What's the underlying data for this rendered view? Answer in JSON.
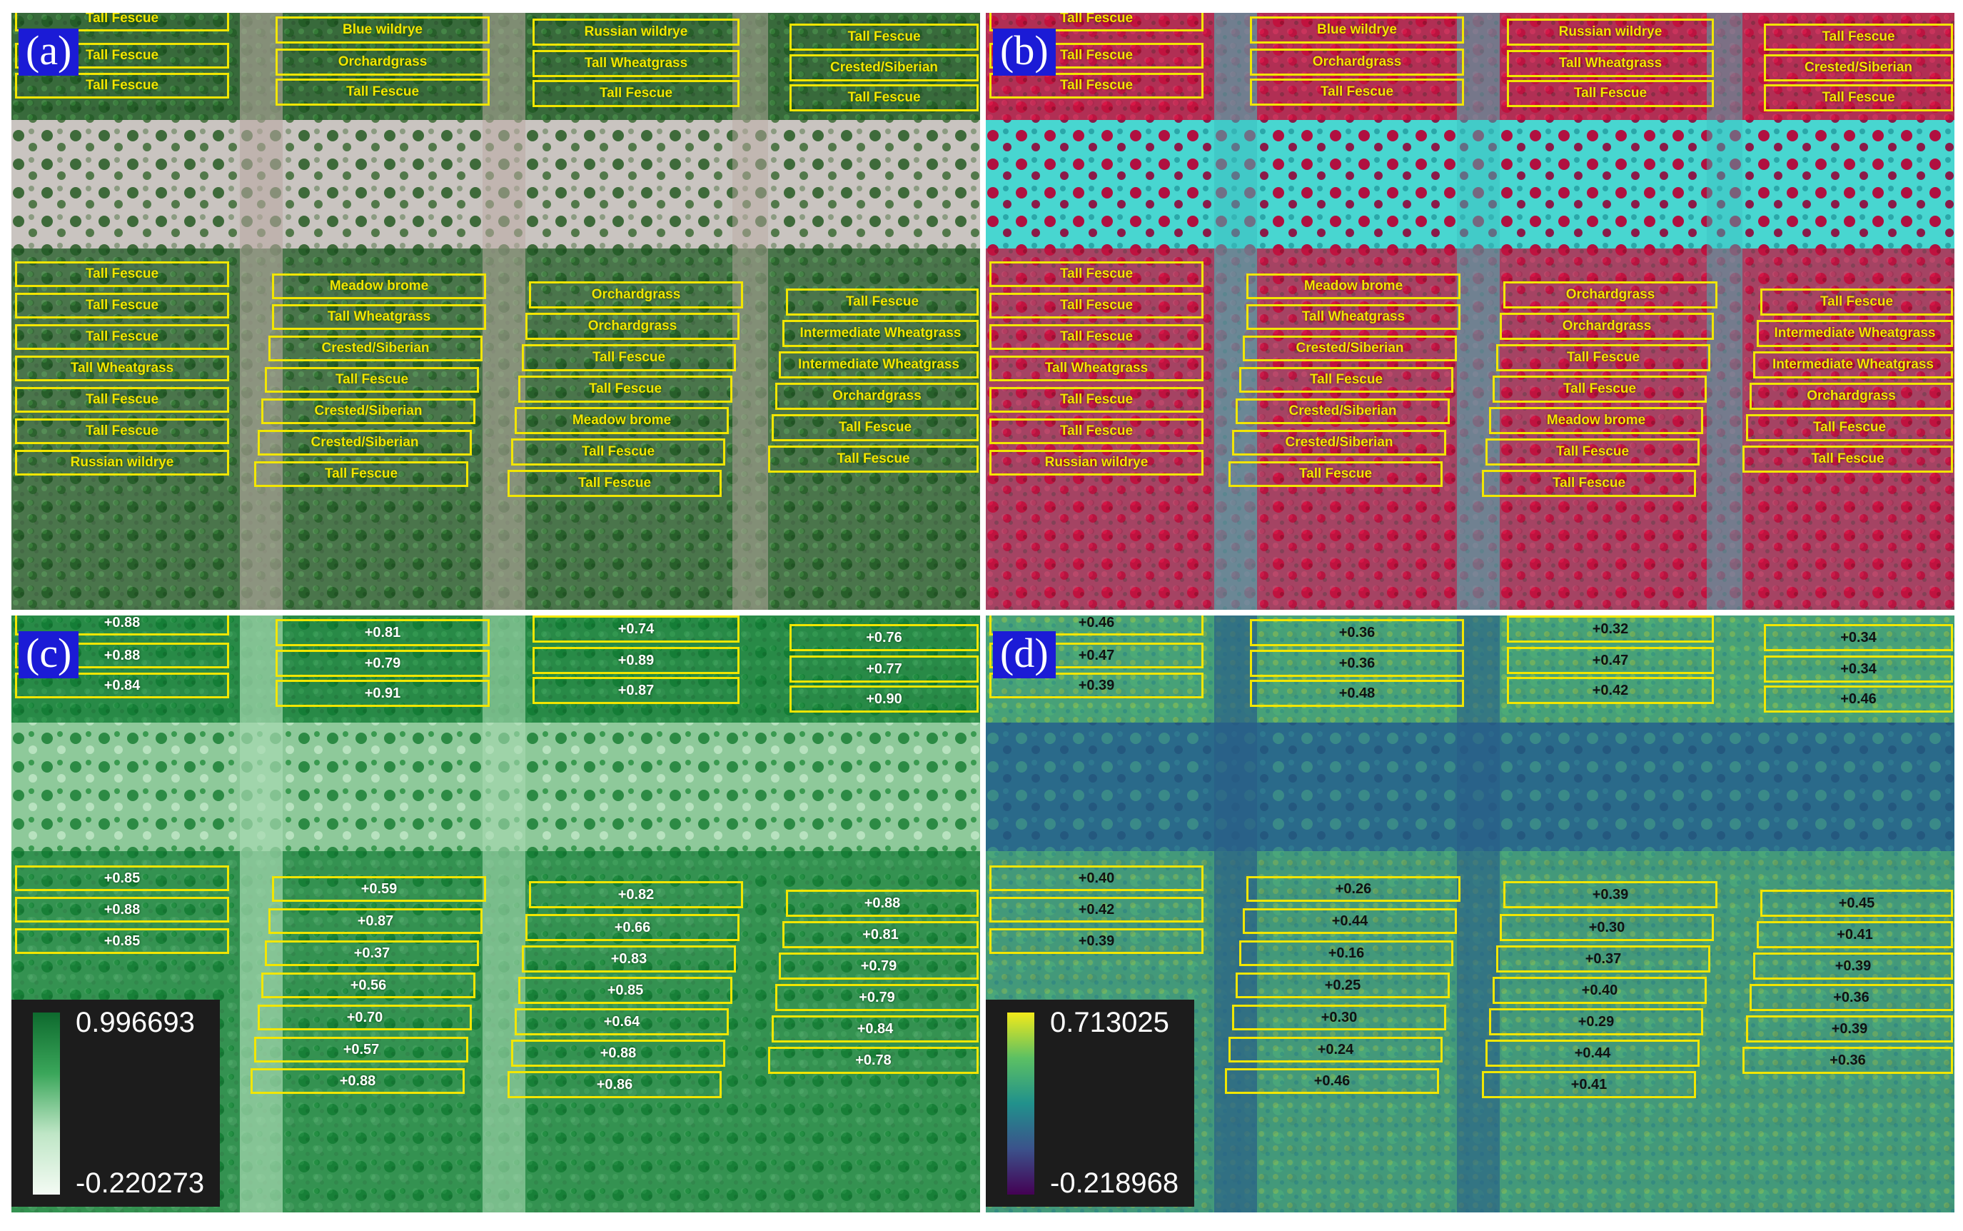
{
  "panels": {
    "a": {
      "tag": "(a)"
    },
    "b": {
      "tag": "(b)"
    },
    "c": {
      "tag": "(c)"
    },
    "d": {
      "tag": "(d)"
    }
  },
  "species_labels": [
    "Tall Fescue",
    "Tall Fescue",
    "Tall Fescue",
    "Blue wildrye",
    "Orchardgrass",
    "Tall Fescue",
    "Russian wildrye",
    "Tall Wheatgrass",
    "Tall Fescue",
    "Tall Fescue",
    "Crested/Siberian",
    "Tall Fescue",
    "Tall Fescue",
    "Tall Fescue",
    "Tall Fescue",
    "Tall Wheatgrass",
    "Tall Fescue",
    "Tall Fescue",
    "Russian wildrye",
    "Meadow brome",
    "Tall Wheatgrass",
    "Crested/Siberian",
    "Tall Fescue",
    "Crested/Siberian",
    "Crested/Siberian",
    "Tall Fescue",
    "Orchardgrass",
    "Orchardgrass",
    "Tall Fescue",
    "Tall Fescue",
    "Meadow brome",
    "Tall Fescue",
    "Tall Fescue",
    "Tall Fescue",
    "Intermediate Wheatgrass",
    "Intermediate Wheatgrass",
    "Orchardgrass",
    "Tall Fescue",
    "Tall Fescue"
  ],
  "ndvi_values": [
    "+0.88",
    "+0.88",
    "+0.84",
    "+0.81",
    "+0.79",
    "+0.91",
    "+0.74",
    "+0.89",
    "+0.87",
    "+0.76",
    "+0.77",
    "+0.90",
    "+0.85",
    "+0.88",
    "+0.85",
    "+0.59",
    "+0.87",
    "+0.37",
    "+0.56",
    "+0.70",
    "+0.57",
    "+0.88",
    "+0.82",
    "+0.66",
    "+0.83",
    "+0.85",
    "+0.64",
    "+0.88",
    "+0.86",
    "+0.88",
    "+0.81",
    "+0.79",
    "+0.79",
    "+0.84",
    "+0.78"
  ],
  "index2_values": [
    "+0.46",
    "+0.47",
    "+0.39",
    "+0.36",
    "+0.36",
    "+0.48",
    "+0.32",
    "+0.47",
    "+0.42",
    "+0.34",
    "+0.34",
    "+0.46",
    "+0.40",
    "+0.42",
    "+0.39",
    "+0.26",
    "+0.44",
    "+0.16",
    "+0.25",
    "+0.30",
    "+0.24",
    "+0.46",
    "+0.39",
    "+0.30",
    "+0.37",
    "+0.40",
    "+0.29",
    "+0.44",
    "+0.41",
    "+0.45",
    "+0.41",
    "+0.39",
    "+0.36",
    "+0.39",
    "+0.36"
  ],
  "legend_c": {
    "max": "0.996693",
    "min": "-0.220273"
  },
  "legend_d": {
    "max": "0.713025",
    "min": "-0.218968"
  },
  "colors": {
    "rgb_vegetation": "#1f5a24",
    "rgb_soil": "#c9c4c0",
    "cir_vegetation": "#c4123e",
    "cir_soil": "#48d6d0",
    "ndvi_high": "#0e7a32",
    "ndvi_low": "#eef7ee",
    "index_high": "#f2ea1a",
    "index_low": "#3a1a6a",
    "plot_outline": "#f2e600",
    "tag_bg": "#1b1bd6"
  }
}
